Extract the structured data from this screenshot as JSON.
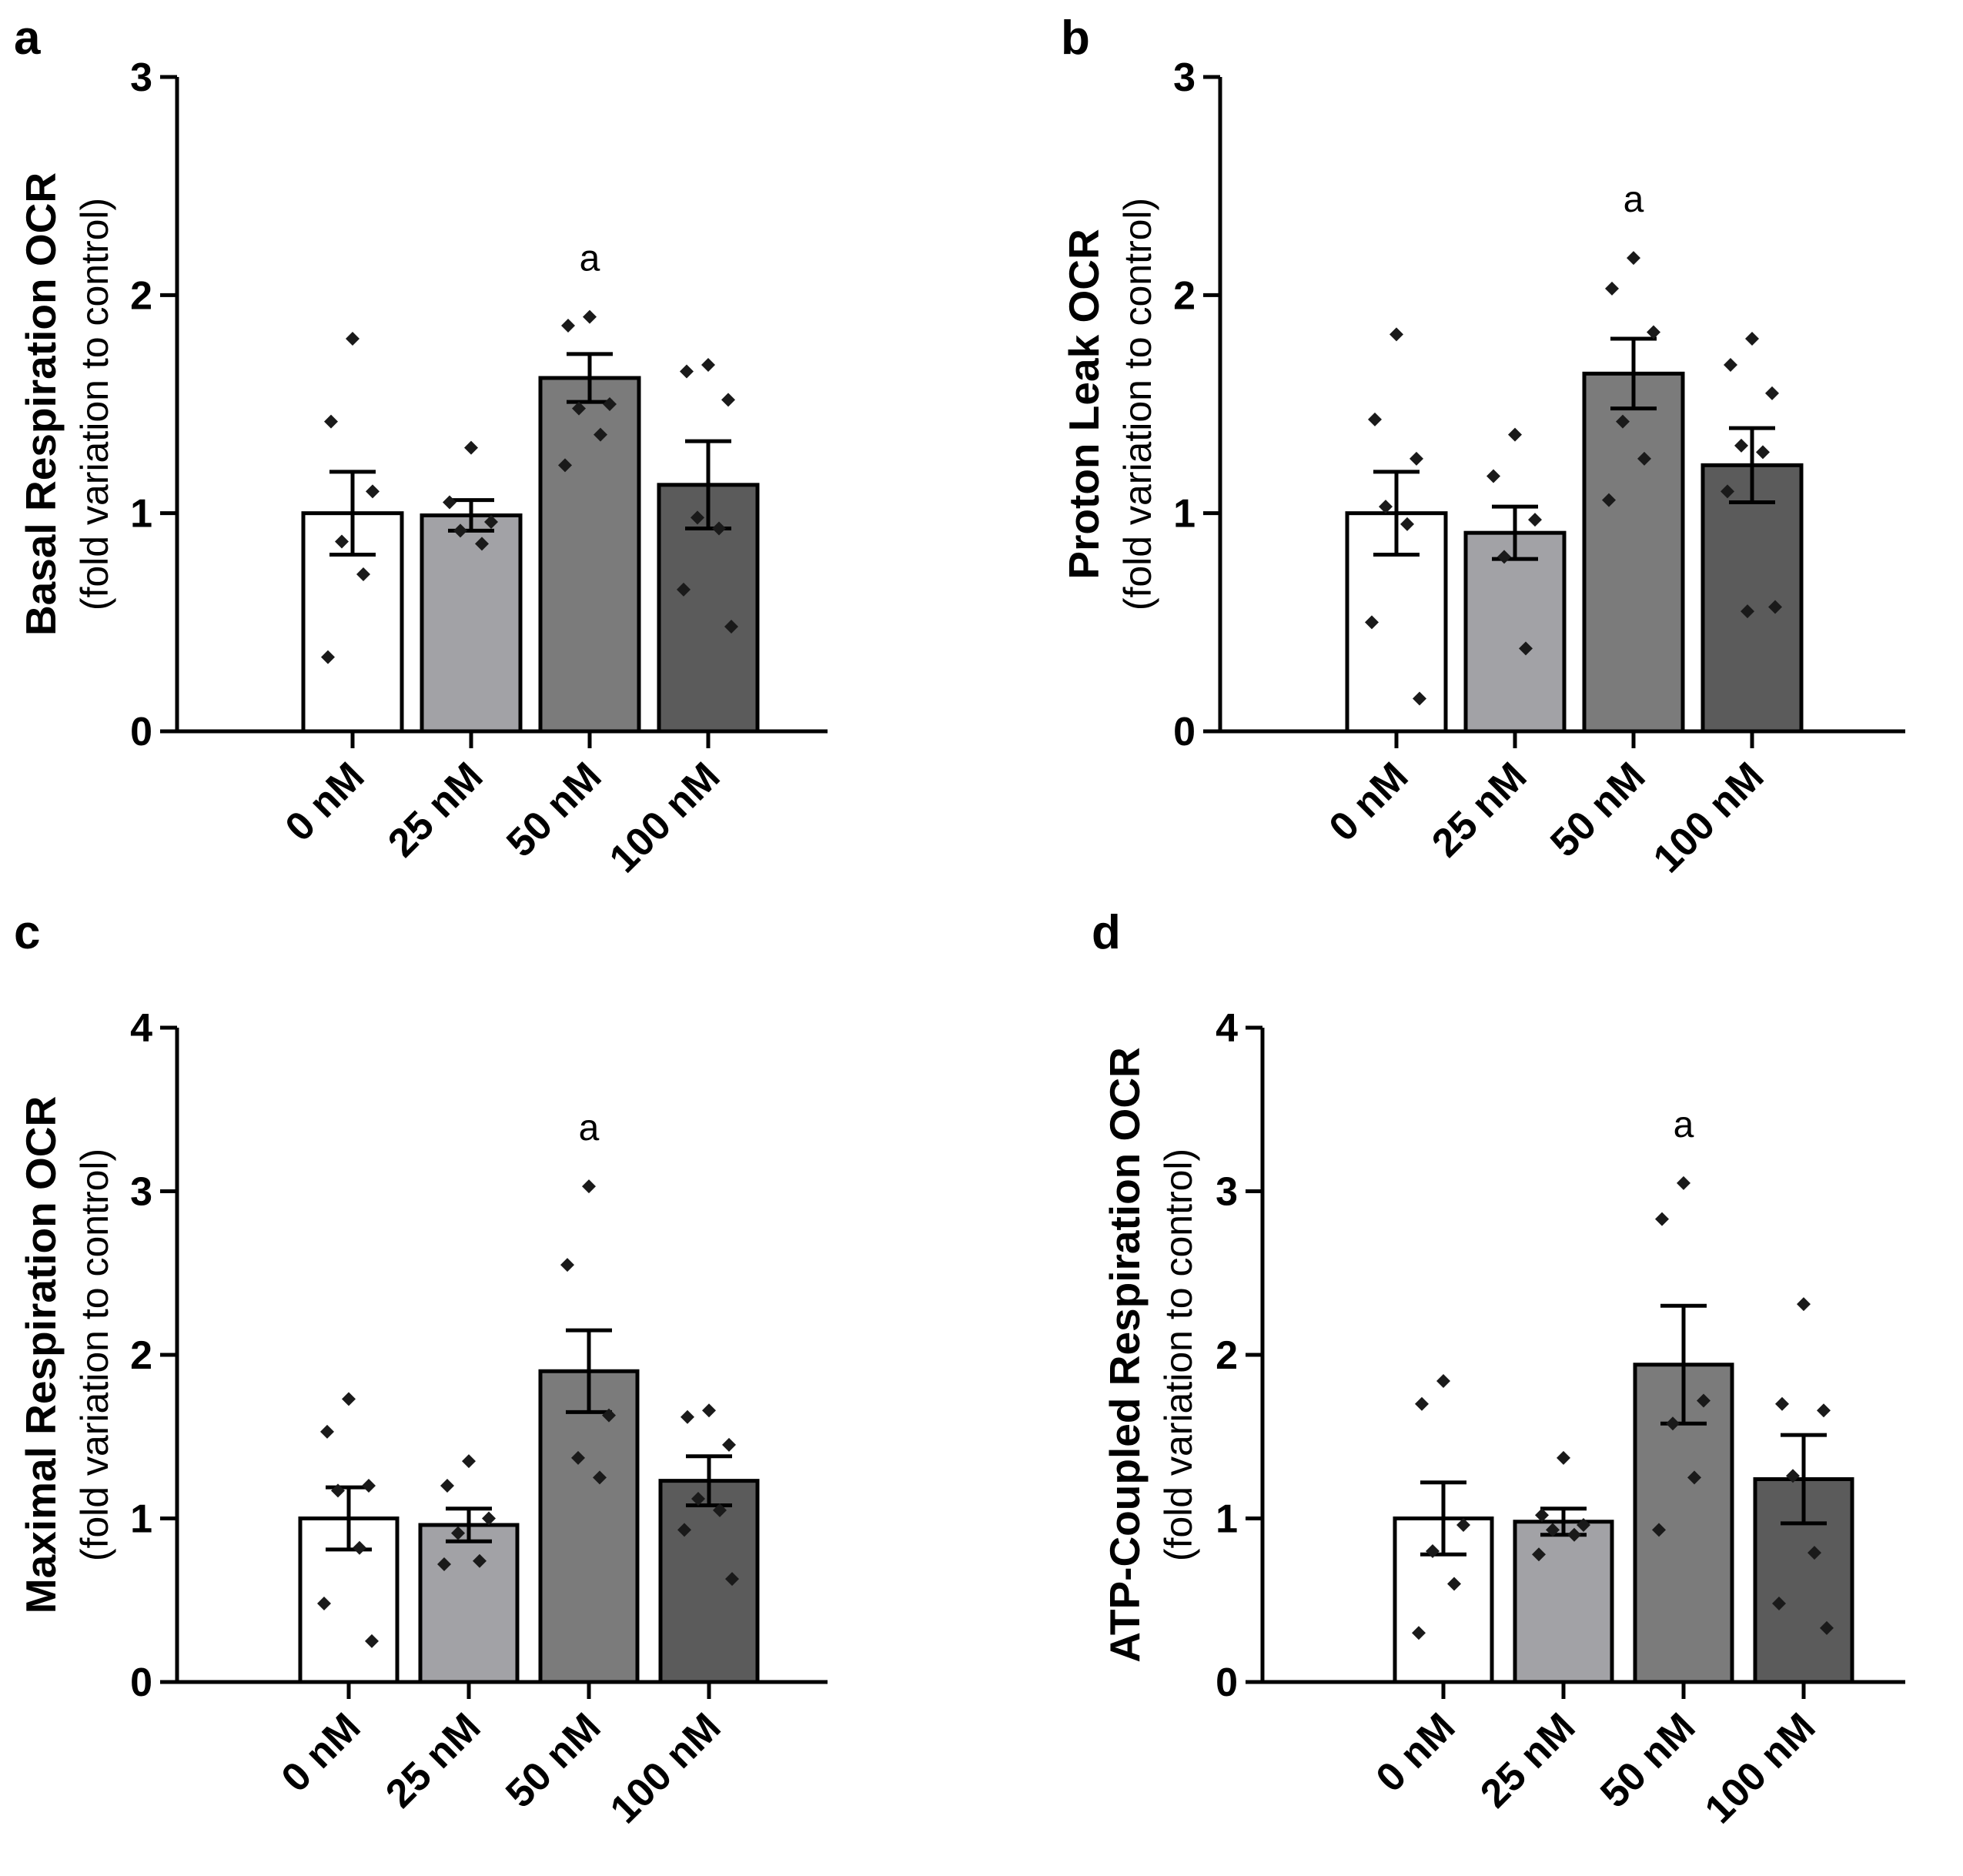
{
  "colors": {
    "bar_fills": [
      "#ffffff",
      "#a2a2a6",
      "#7b7b7b",
      "#5b5b5b"
    ],
    "bar_stroke": "#000000",
    "axis": "#000000",
    "point": "#1a1a1a"
  },
  "chart_data": [
    {
      "type": "bar",
      "panel": "a",
      "ylabel": "Basal Respiration OCR",
      "ylabel_sub": "(fold variation to control)",
      "xlabel": "",
      "categories": [
        "0 nM",
        "25 nM",
        "50 nM",
        "100 nM"
      ],
      "ylim": [
        0,
        3
      ],
      "yticks": [
        "0",
        "1",
        "2",
        "3"
      ],
      "values": [
        1.0,
        0.99,
        1.62,
        1.13
      ],
      "sem": [
        0.19,
        0.07,
        0.11,
        0.2
      ],
      "significance": [
        "",
        "",
        "a",
        ""
      ],
      "points": [
        [
          1.8,
          1.42,
          1.1,
          0.87,
          0.72,
          0.34
        ],
        [
          1.3,
          1.05,
          0.96,
          0.92,
          0.86
        ],
        [
          1.9,
          1.86,
          1.5,
          1.48,
          1.36,
          1.22
        ],
        [
          1.68,
          1.65,
          1.52,
          0.98,
          0.93,
          0.65,
          0.48
        ]
      ]
    },
    {
      "type": "bar",
      "panel": "b",
      "ylabel": "Proton Leak OCR",
      "ylabel_sub": "(fold variation to control)",
      "xlabel": "",
      "categories": [
        "0 nM",
        "25 nM",
        "50 nM",
        "100 nM"
      ],
      "ylim": [
        0,
        3
      ],
      "yticks": [
        "0",
        "1",
        "2",
        "3"
      ],
      "values": [
        1.0,
        0.91,
        1.64,
        1.22
      ],
      "sem": [
        0.19,
        0.12,
        0.16,
        0.17
      ],
      "significance": [
        "",
        "",
        "a",
        ""
      ],
      "points": [
        [
          1.82,
          1.43,
          1.25,
          1.03,
          0.95,
          0.5,
          0.15
        ],
        [
          1.36,
          1.17,
          0.97,
          0.8,
          0.38
        ],
        [
          2.17,
          2.03,
          1.83,
          1.42,
          1.25,
          1.06
        ],
        [
          1.8,
          1.68,
          1.55,
          1.31,
          1.28,
          1.1,
          0.57,
          0.55
        ]
      ]
    },
    {
      "type": "bar",
      "panel": "c",
      "ylabel": "Maximal Respiration OCR",
      "ylabel_sub": "(fold variation to control)",
      "xlabel": "",
      "categories": [
        "0 nM",
        "25 nM",
        "50 nM",
        "100 nM"
      ],
      "ylim": [
        0,
        4
      ],
      "yticks": [
        "0",
        "1",
        "2",
        "3",
        "4"
      ],
      "values": [
        1.0,
        0.96,
        1.9,
        1.23
      ],
      "sem": [
        0.19,
        0.1,
        0.25,
        0.15
      ],
      "significance": [
        "",
        "",
        "a",
        ""
      ],
      "points": [
        [
          1.73,
          1.53,
          1.2,
          1.17,
          0.82,
          0.48,
          0.25
        ],
        [
          1.35,
          1.2,
          1.0,
          0.91,
          0.74,
          0.72
        ],
        [
          3.03,
          2.55,
          1.63,
          1.37,
          1.25
        ],
        [
          1.66,
          1.62,
          1.45,
          1.12,
          1.05,
          0.93,
          0.63
        ]
      ]
    },
    {
      "type": "bar",
      "panel": "d",
      "ylabel": "ATP-Coupled Respiration OCR",
      "ylabel_sub": "(fold variation to control)",
      "xlabel": "",
      "categories": [
        "0 nM",
        "25 nM",
        "50 nM",
        "100 nM"
      ],
      "ylim": [
        0,
        4
      ],
      "yticks": [
        "0",
        "1",
        "2",
        "3",
        "4"
      ],
      "values": [
        1.0,
        0.98,
        1.94,
        1.24
      ],
      "sem": [
        0.22,
        0.08,
        0.36,
        0.27
      ],
      "significance": [
        "",
        "",
        "a",
        ""
      ],
      "points": [
        [
          1.84,
          1.7,
          0.96,
          0.8,
          0.6,
          0.3
        ],
        [
          1.37,
          1.02,
          0.96,
          0.93,
          0.9,
          0.78
        ],
        [
          3.05,
          2.83,
          1.72,
          1.58,
          1.25,
          0.93
        ],
        [
          2.31,
          1.7,
          1.66,
          1.26,
          0.79,
          0.48,
          0.33
        ]
      ]
    }
  ]
}
